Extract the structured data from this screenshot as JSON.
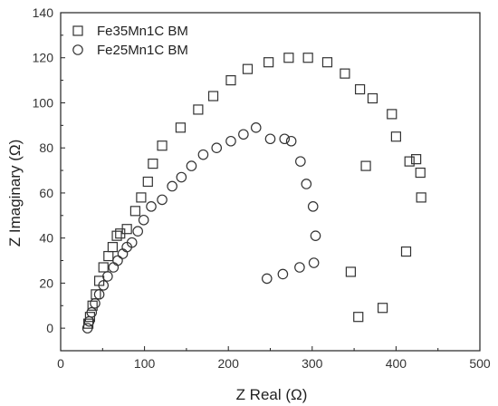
{
  "chart_data": {
    "type": "scatter",
    "title": "",
    "xlabel": "Z Real (Ω)",
    "ylabel": "Z Imaginary (Ω)",
    "xlim": [
      0,
      500
    ],
    "ylim": [
      -10,
      140
    ],
    "xticks": [
      0,
      100,
      200,
      300,
      400,
      500
    ],
    "yticks": [
      0,
      20,
      40,
      60,
      80,
      100,
      120,
      140
    ],
    "grid": false,
    "legend_position": "top-left",
    "series": [
      {
        "name": "Fe35Mn1C BM",
        "marker": "square",
        "color": "#333333",
        "points": [
          [
            33,
            2
          ],
          [
            35,
            5
          ],
          [
            38,
            10
          ],
          [
            42,
            15
          ],
          [
            46,
            21
          ],
          [
            51,
            27
          ],
          [
            57,
            32
          ],
          [
            62,
            36
          ],
          [
            67,
            41
          ],
          [
            71,
            42
          ],
          [
            79,
            44
          ],
          [
            89,
            52
          ],
          [
            96,
            58
          ],
          [
            104,
            65
          ],
          [
            110,
            73
          ],
          [
            121,
            81
          ],
          [
            143,
            89
          ],
          [
            164,
            97
          ],
          [
            182,
            103
          ],
          [
            203,
            110
          ],
          [
            223,
            115
          ],
          [
            248,
            118
          ],
          [
            272,
            120
          ],
          [
            295,
            120
          ],
          [
            318,
            118
          ],
          [
            339,
            113
          ],
          [
            357,
            106
          ],
          [
            372,
            102
          ],
          [
            395,
            95
          ],
          [
            400,
            85
          ],
          [
            416,
            74
          ],
          [
            424,
            75
          ],
          [
            429,
            69
          ],
          [
            430,
            58
          ],
          [
            412,
            34
          ],
          [
            364,
            72
          ],
          [
            346,
            25
          ],
          [
            384,
            9
          ],
          [
            355,
            5
          ]
        ]
      },
      {
        "name": "Fe25Mn1C BM",
        "marker": "circle",
        "color": "#333333",
        "points": [
          [
            32,
            0
          ],
          [
            34,
            3
          ],
          [
            37,
            7
          ],
          [
            41,
            11
          ],
          [
            46,
            15
          ],
          [
            51,
            19
          ],
          [
            56,
            23
          ],
          [
            63,
            27
          ],
          [
            68,
            30
          ],
          [
            74,
            33
          ],
          [
            79,
            36
          ],
          [
            85,
            38
          ],
          [
            92,
            43
          ],
          [
            99,
            48
          ],
          [
            108,
            54
          ],
          [
            121,
            57
          ],
          [
            133,
            63
          ],
          [
            144,
            67
          ],
          [
            156,
            72
          ],
          [
            170,
            77
          ],
          [
            186,
            80
          ],
          [
            203,
            83
          ],
          [
            218,
            86
          ],
          [
            233,
            89
          ],
          [
            250,
            84
          ],
          [
            267,
            84
          ],
          [
            275,
            83
          ],
          [
            286,
            74
          ],
          [
            293,
            64
          ],
          [
            301,
            54
          ],
          [
            304,
            41
          ],
          [
            302,
            29
          ],
          [
            285,
            27
          ],
          [
            265,
            24
          ],
          [
            246,
            22
          ]
        ]
      }
    ]
  }
}
